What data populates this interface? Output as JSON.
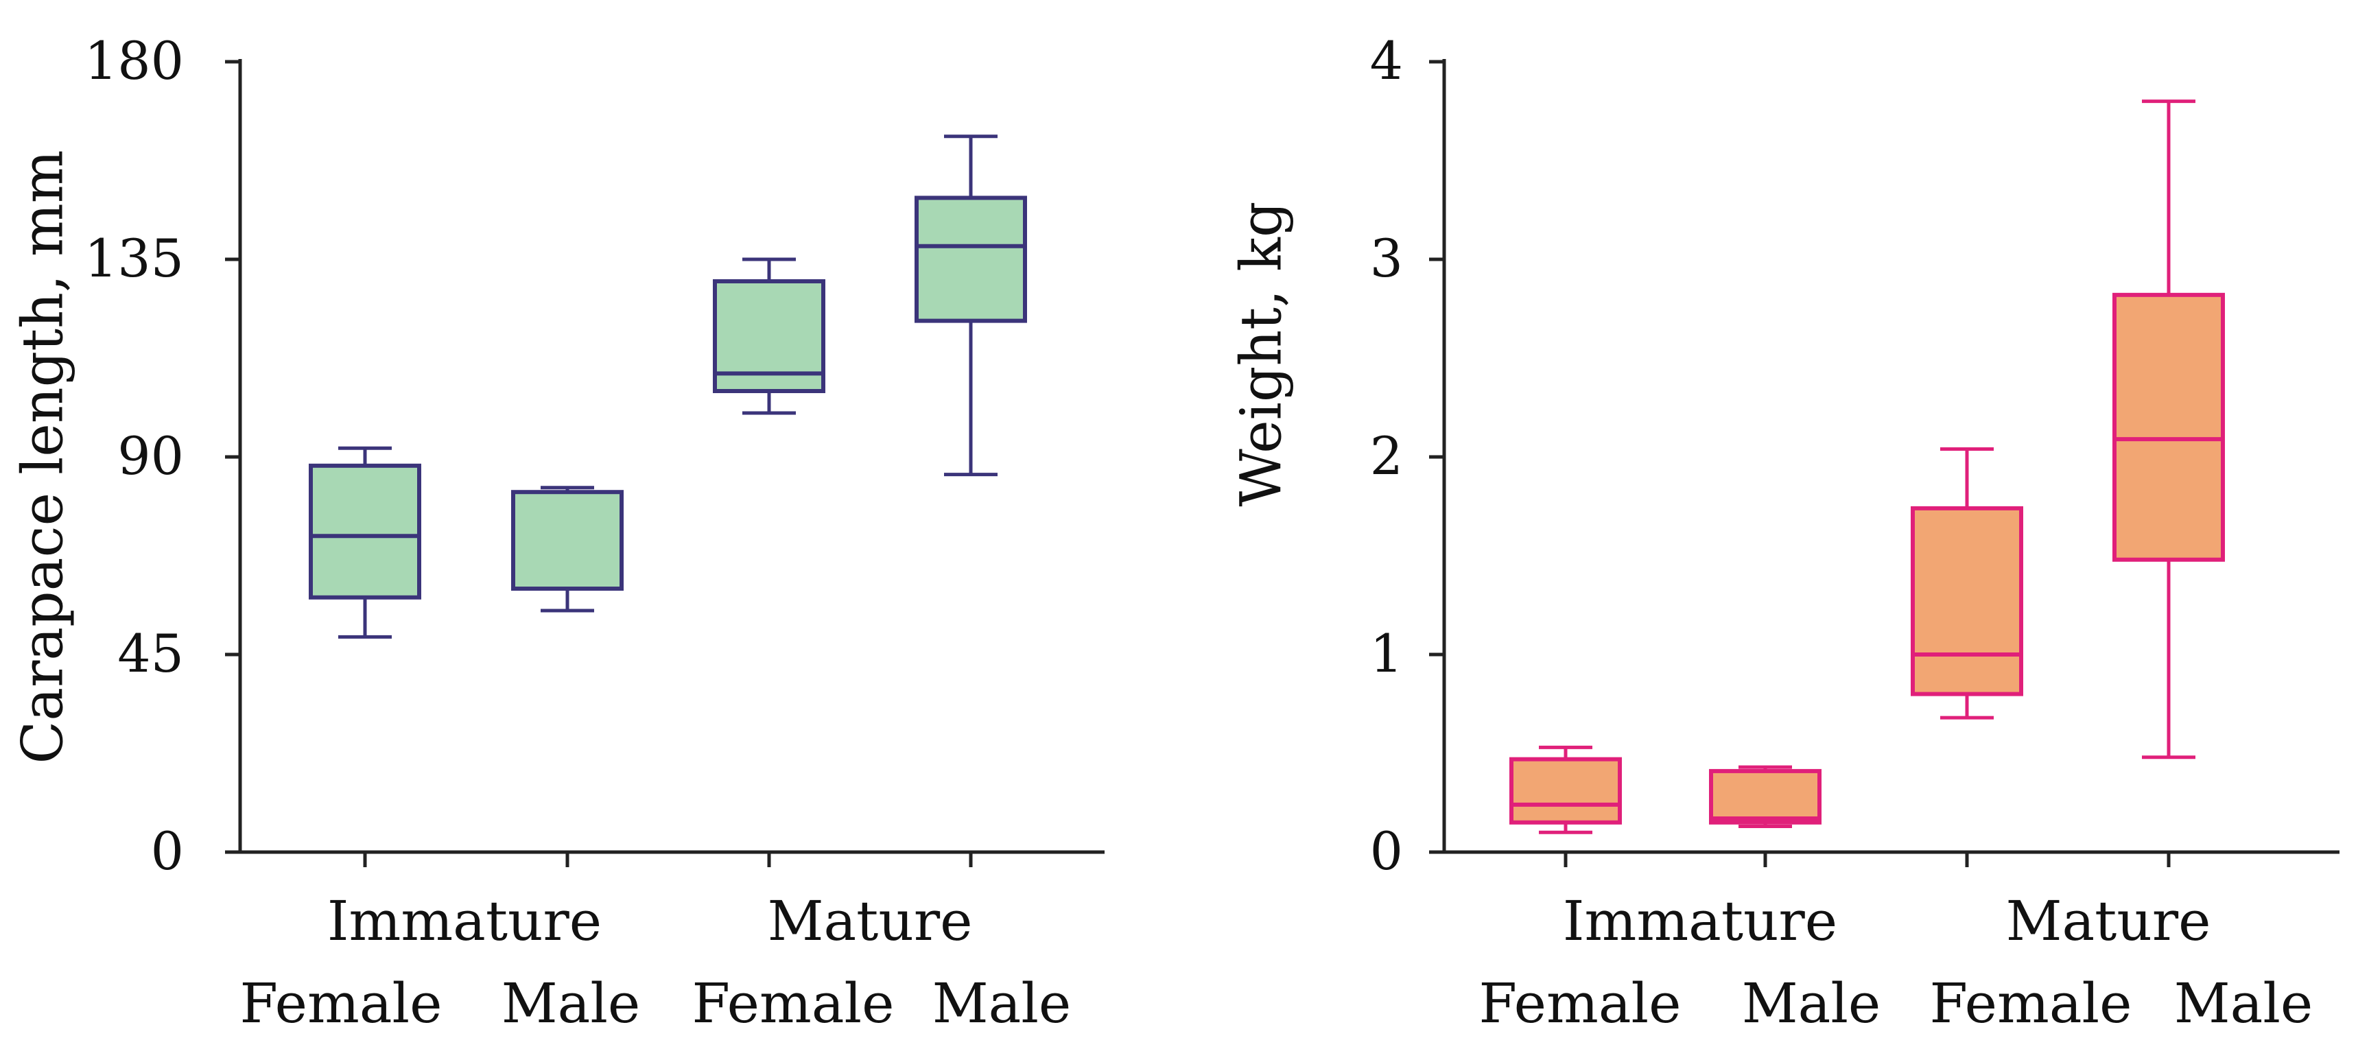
{
  "chart_data": [
    {
      "type": "boxplot",
      "ylabel": "Carapace length, mm",
      "ylim": [
        0,
        180
      ],
      "yticks": [
        0,
        45,
        90,
        135,
        180
      ],
      "group_labels": [
        "Immature",
        "Mature"
      ],
      "categories": [
        "Female",
        "Male",
        "Female",
        "Male"
      ],
      "boxes": [
        {
          "group": "Immature",
          "sex": "Female",
          "min": 49,
          "q1": 58,
          "median": 72,
          "q3": 88,
          "max": 92
        },
        {
          "group": "Immature",
          "sex": "Male",
          "min": 55,
          "q1": 60,
          "median": 60,
          "q3": 82,
          "max": 83
        },
        {
          "group": "Mature",
          "sex": "Female",
          "min": 100,
          "q1": 105,
          "median": 109,
          "q3": 130,
          "max": 135
        },
        {
          "group": "Mature",
          "sex": "Male",
          "min": 86,
          "q1": 121,
          "median": 138,
          "q3": 149,
          "max": 163
        }
      ],
      "colors": {
        "fill": "#a8d8b4",
        "stroke": "#3b347a"
      }
    },
    {
      "type": "boxplot",
      "ylabel": "Weight, kg",
      "ylim": [
        0,
        4
      ],
      "yticks": [
        0,
        1,
        2,
        3,
        4
      ],
      "group_labels": [
        "Immature",
        "Mature"
      ],
      "categories": [
        "Female",
        "Male",
        "Female",
        "Male"
      ],
      "boxes": [
        {
          "group": "Immature",
          "sex": "Female",
          "min": 0.1,
          "q1": 0.15,
          "median": 0.24,
          "q3": 0.47,
          "max": 0.53
        },
        {
          "group": "Immature",
          "sex": "Male",
          "min": 0.13,
          "q1": 0.15,
          "median": 0.17,
          "q3": 0.41,
          "max": 0.43
        },
        {
          "group": "Mature",
          "sex": "Female",
          "min": 0.68,
          "q1": 0.8,
          "median": 1.0,
          "q3": 1.74,
          "max": 2.04
        },
        {
          "group": "Mature",
          "sex": "Male",
          "min": 0.48,
          "q1": 1.48,
          "median": 2.09,
          "q3": 2.82,
          "max": 3.8
        }
      ],
      "colors": {
        "fill": "#f2a673",
        "stroke": "#e0207a"
      }
    }
  ]
}
